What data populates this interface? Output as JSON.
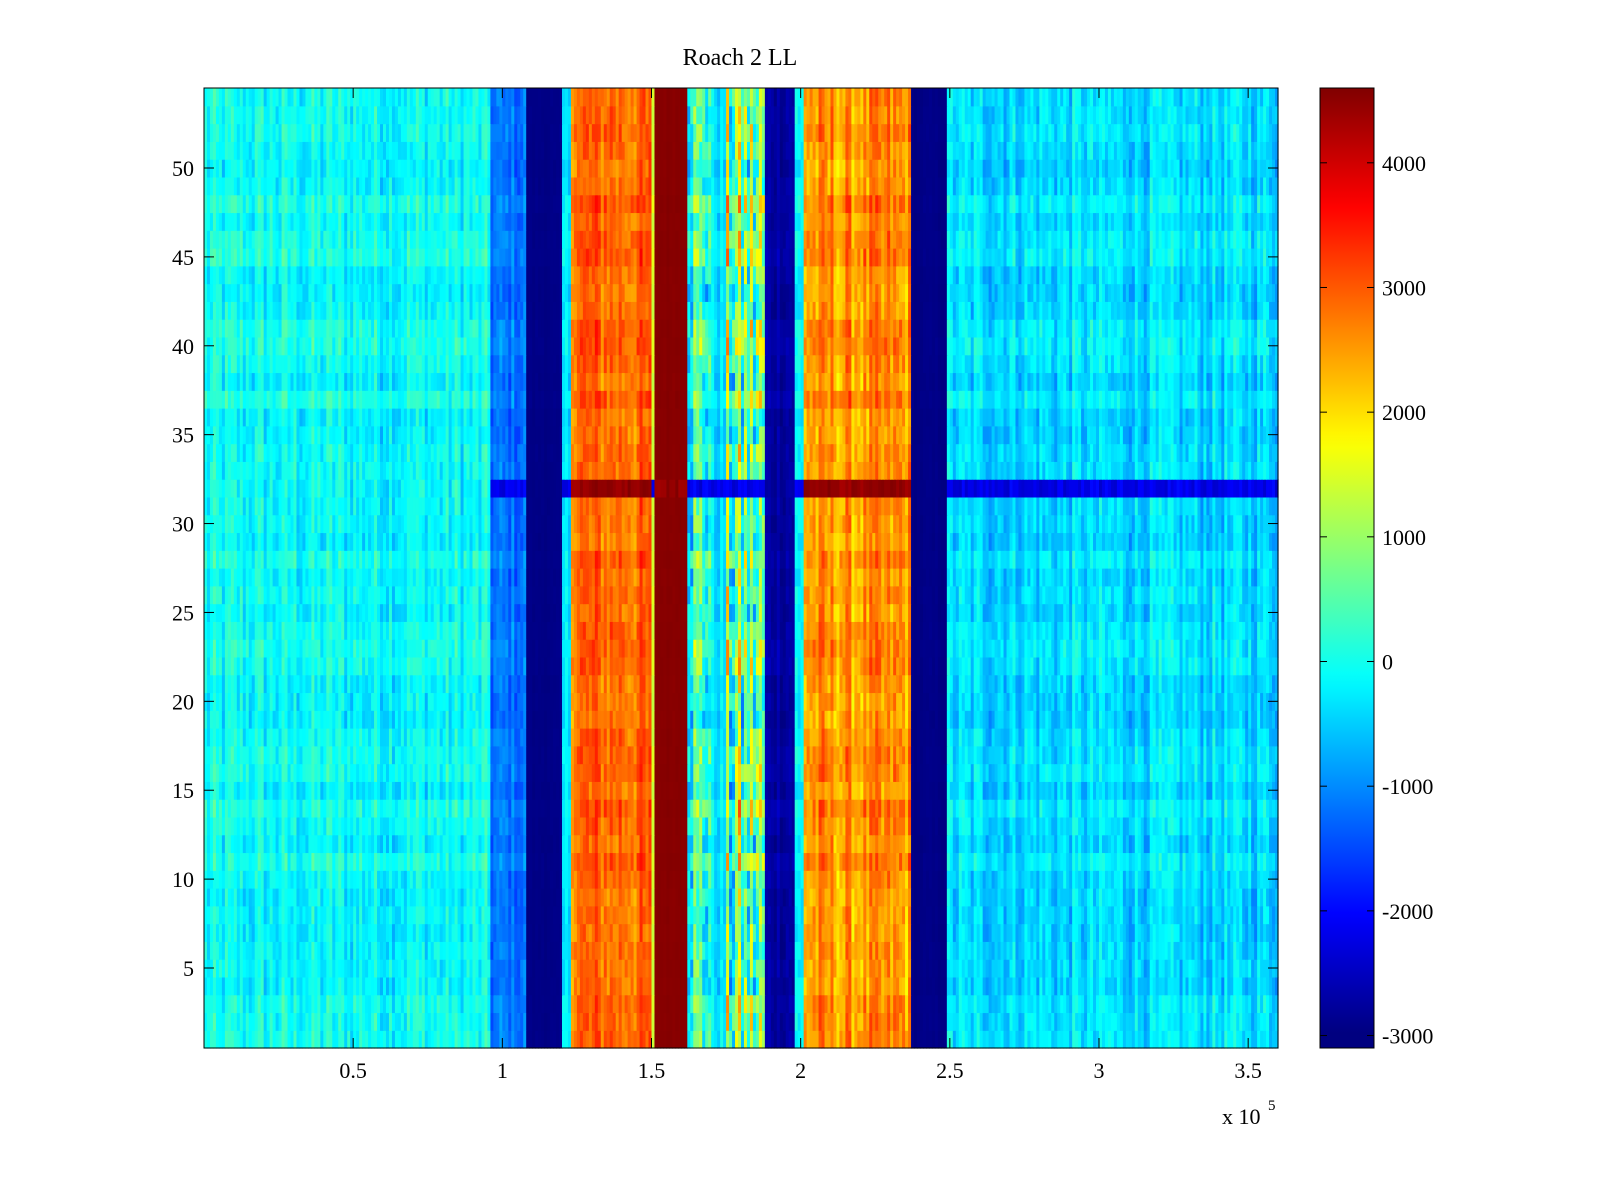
{
  "chart_data": {
    "type": "heatmap",
    "title": "Roach 2 LL",
    "xlabel": "",
    "ylabel": "",
    "x_range": [
      0,
      360000
    ],
    "y_range": [
      0.5,
      54.5
    ],
    "x_ticks": [
      50000,
      100000,
      150000,
      200000,
      250000,
      300000,
      350000
    ],
    "x_tick_labels": [
      "0.5",
      "1",
      "1.5",
      "2",
      "2.5",
      "3",
      "3.5"
    ],
    "x_multiplier_label": "x 10",
    "x_multiplier_exponent": "5",
    "y_ticks": [
      5,
      10,
      15,
      20,
      25,
      30,
      35,
      40,
      45,
      50
    ],
    "y_tick_labels": [
      "5",
      "10",
      "15",
      "20",
      "25",
      "30",
      "35",
      "40",
      "45",
      "50"
    ],
    "rows": 54,
    "colormap": "jet",
    "colorbar": {
      "range": [
        -3100,
        4600
      ],
      "ticks": [
        -3000,
        -2000,
        -1000,
        0,
        1000,
        2000,
        3000,
        4000
      ],
      "tick_labels": [
        "-3000",
        "-2000",
        "-1000",
        "0",
        "1000",
        "2000",
        "3000",
        "4000"
      ]
    },
    "bands": [
      {
        "x": [
          0,
          96000
        ],
        "value": -150,
        "noise": 650
      },
      {
        "x": [
          96000,
          108000
        ],
        "value": -1250,
        "noise": 500
      },
      {
        "x": [
          108000,
          120000
        ],
        "value": -3050,
        "noise": 60
      },
      {
        "x": [
          120000,
          123000
        ],
        "value": -400,
        "noise": 500
      },
      {
        "x": [
          123000,
          150000
        ],
        "value": 2900,
        "noise": 700
      },
      {
        "x": [
          150000,
          151500
        ],
        "value": 1300,
        "noise": 300
      },
      {
        "x": [
          151500,
          162000
        ],
        "value": 4550,
        "noise": 40
      },
      {
        "x": [
          162000,
          170000
        ],
        "value": 300,
        "noise": 1600
      },
      {
        "x": [
          170000,
          175000
        ],
        "value": -400,
        "noise": 500
      },
      {
        "x": [
          175000,
          188000
        ],
        "value": 600,
        "noise": 2200
      },
      {
        "x": [
          188000,
          198000
        ],
        "value": -2800,
        "noise": 300
      },
      {
        "x": [
          198000,
          201000
        ],
        "value": -300,
        "noise": 600
      },
      {
        "x": [
          201000,
          237000
        ],
        "value": 2500,
        "noise": 800
      },
      {
        "x": [
          237000,
          249000
        ],
        "value": -3050,
        "noise": 60
      },
      {
        "x": [
          249000,
          360000
        ],
        "value": -450,
        "noise": 650
      }
    ],
    "row_notes": [
      {
        "row": 32,
        "x": [
          96000,
          360000
        ],
        "value_left": -2300,
        "value_bright": 4600
      }
    ]
  }
}
